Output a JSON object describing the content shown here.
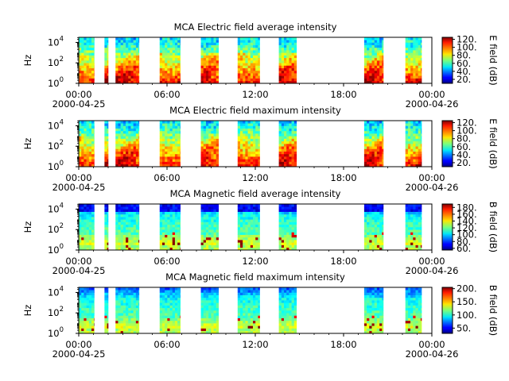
{
  "chart_data": [
    {
      "type": "heatmap",
      "title": "MCA  Electric field average intensity",
      "ylabel": "Hz",
      "ytick_labels": [
        "10",
        "10",
        "10"
      ],
      "ytick_exponents": [
        "0",
        "2",
        "4"
      ],
      "yscale": "log",
      "ylim_hz": [
        1,
        31623
      ],
      "xtick_labels": [
        "00:00",
        "06:00",
        "12:00",
        "18:00",
        "00:00"
      ],
      "xdate_labels": [
        "2000-04-25",
        "2000-04-26"
      ],
      "xlim_hours": [
        0,
        24
      ],
      "colorbar": {
        "label": "E field (dB)",
        "ticks": [
          "20.",
          "40.",
          "60.",
          "80.",
          "100.",
          "120."
        ],
        "tick_values": [
          20,
          40,
          60,
          80,
          100,
          120
        ],
        "range": [
          10,
          125
        ],
        "colormap": "jet"
      },
      "data_intervals_hours": [
        [
          0.0,
          1.05
        ],
        [
          1.75,
          2.0
        ],
        [
          2.5,
          4.1
        ],
        [
          5.5,
          6.9
        ],
        [
          8.3,
          9.5
        ],
        [
          10.8,
          12.3
        ],
        [
          13.6,
          14.8
        ],
        [
          19.4,
          20.7
        ],
        [
          22.2,
          23.3
        ]
      ],
      "gridlines": false
    },
    {
      "type": "heatmap",
      "title": "MCA  Electric field maximum intensity",
      "ylabel": "Hz",
      "ytick_labels": [
        "10",
        "10",
        "10"
      ],
      "ytick_exponents": [
        "0",
        "2",
        "4"
      ],
      "yscale": "log",
      "ylim_hz": [
        1,
        31623
      ],
      "xtick_labels": [
        "00:00",
        "06:00",
        "12:00",
        "18:00",
        "00:00"
      ],
      "xdate_labels": [
        "2000-04-25",
        "2000-04-26"
      ],
      "xlim_hours": [
        0,
        24
      ],
      "colorbar": {
        "label": "E field (dB)",
        "ticks": [
          "20.",
          "40.",
          "60.",
          "80.",
          "100.",
          "120."
        ],
        "tick_values": [
          20,
          40,
          60,
          80,
          100,
          120
        ],
        "range": [
          10,
          125
        ],
        "colormap": "jet"
      },
      "data_intervals_hours": [
        [
          0.0,
          1.05
        ],
        [
          1.75,
          2.0
        ],
        [
          2.5,
          4.1
        ],
        [
          5.5,
          6.9
        ],
        [
          8.3,
          9.5
        ],
        [
          10.8,
          12.3
        ],
        [
          13.6,
          14.8
        ],
        [
          19.4,
          20.7
        ],
        [
          22.2,
          23.3
        ]
      ],
      "gridlines": false
    },
    {
      "type": "heatmap",
      "title": "MCA  Magnetic field average intensity",
      "ylabel": "Hz",
      "ytick_labels": [
        "10",
        "10",
        "10"
      ],
      "ytick_exponents": [
        "0",
        "2",
        "4"
      ],
      "yscale": "log",
      "ylim_hz": [
        1,
        31623
      ],
      "xtick_labels": [
        "00:00",
        "06:00",
        "12:00",
        "18:00",
        "00:00"
      ],
      "xdate_labels": [
        "2000-04-25",
        "2000-04-26"
      ],
      "xlim_hours": [
        0,
        24
      ],
      "colorbar": {
        "label": "B field (dB)",
        "ticks": [
          "60.",
          "80.",
          "100.",
          "120.",
          "140.",
          "160.",
          "180."
        ],
        "tick_values": [
          60,
          80,
          100,
          120,
          140,
          160,
          180
        ],
        "range": [
          55,
          190
        ],
        "colormap": "jet"
      },
      "data_intervals_hours": [
        [
          0.0,
          1.05
        ],
        [
          1.75,
          2.0
        ],
        [
          2.5,
          4.1
        ],
        [
          5.5,
          6.9
        ],
        [
          8.3,
          9.5
        ],
        [
          10.8,
          12.3
        ],
        [
          13.6,
          14.8
        ],
        [
          19.4,
          20.7
        ],
        [
          22.2,
          23.3
        ]
      ],
      "gridlines": false
    },
    {
      "type": "heatmap",
      "title": "MCA  Magnetic field maximum intensity",
      "ylabel": "Hz",
      "ytick_labels": [
        "10",
        "10",
        "10"
      ],
      "ytick_exponents": [
        "0",
        "2",
        "4"
      ],
      "yscale": "log",
      "ylim_hz": [
        1,
        31623
      ],
      "xtick_labels": [
        "00:00",
        "06:00",
        "12:00",
        "18:00",
        "00:00"
      ],
      "xdate_labels": [
        "2000-04-25",
        "2000-04-26"
      ],
      "xlim_hours": [
        0,
        24
      ],
      "colorbar": {
        "label": "B field (dB)",
        "ticks": [
          "50.",
          "100.",
          "150.",
          "200."
        ],
        "tick_values": [
          50,
          100,
          150,
          200
        ],
        "range": [
          30,
          205
        ],
        "colormap": "jet"
      },
      "data_intervals_hours": [
        [
          0.0,
          1.05
        ],
        [
          1.75,
          2.0
        ],
        [
          2.5,
          4.1
        ],
        [
          5.5,
          6.9
        ],
        [
          8.3,
          9.5
        ],
        [
          10.8,
          12.3
        ],
        [
          13.6,
          14.8
        ],
        [
          19.4,
          20.7
        ],
        [
          22.2,
          23.3
        ]
      ],
      "gridlines": false
    }
  ]
}
